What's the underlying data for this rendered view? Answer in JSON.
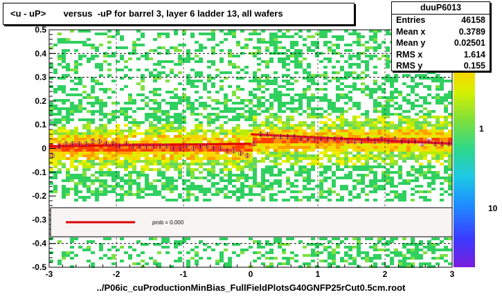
{
  "title": "<u - uP>       versus  -uP for barrel 3, layer 6 ladder 13, all wafers",
  "stats": {
    "name": "duuP6013",
    "rows": [
      {
        "label": "Entries",
        "value": "46158"
      },
      {
        "label": "Mean x",
        "value": "0.3789"
      },
      {
        "label": "Mean y",
        "value": "0.02501"
      },
      {
        "label": "RMS x",
        "value": "1.614"
      },
      {
        "label": "RMS y",
        "value": "0.155"
      }
    ]
  },
  "footer": "../P06ic_cuProductionMinBias_FullFieldPlotsG40GNFP25rCut0.5cm.root",
  "legend": {
    "label": "prob = 0.000",
    "color": "#dd0000"
  },
  "colors": {
    "marker_outline": "#cc3399",
    "marker_fill": "#000000",
    "fit": "#dd0000"
  },
  "chart_data": {
    "type": "heatmap",
    "xlim": [
      -3,
      3
    ],
    "ylim": [
      -0.5,
      0.5
    ],
    "x_ticks": [
      "-3",
      "-2",
      "-1",
      "0",
      "1",
      "2",
      "3"
    ],
    "y_ticks": [
      "-0.5",
      "-0.4",
      "-0.3",
      "-0.2",
      "-0.1",
      "0",
      "0.1",
      "0.2",
      "0.3",
      "0.4",
      "0.5"
    ],
    "colorbar_labels": [
      "1",
      "10"
    ],
    "colorbar_labels_raw": [
      "1",
      "10-1"
    ],
    "profile": {
      "x": [
        -2.95,
        -2.85,
        -2.75,
        -2.65,
        -2.55,
        -2.45,
        -2.35,
        -2.25,
        -2.15,
        -2.05,
        -1.95,
        -1.85,
        -1.75,
        -1.65,
        -1.55,
        -1.45,
        -1.35,
        -1.25,
        -1.15,
        -1.05,
        -0.95,
        -0.85,
        -0.75,
        -0.65,
        -0.55,
        -0.45,
        -0.35,
        -0.25,
        -0.15,
        -0.05,
        0.05,
        0.15,
        0.25,
        0.35,
        0.45,
        0.55,
        0.65,
        0.75,
        0.85,
        0.95,
        1.05,
        1.15,
        1.25,
        1.35,
        1.45,
        1.55,
        1.65,
        1.75,
        1.85,
        1.95,
        2.05,
        2.15,
        2.25,
        2.35,
        2.45,
        2.55,
        2.65,
        2.75,
        2.85,
        2.95
      ],
      "y": [
        -0.03,
        0.01,
        0.02,
        0.02,
        0.02,
        0.02,
        0.03,
        0.03,
        0.02,
        0.02,
        0.01,
        0.02,
        0.01,
        0.01,
        0.01,
        0.01,
        0.01,
        0.01,
        0.0,
        0.0,
        0.01,
        0.0,
        0.01,
        0.01,
        0.0,
        0.0,
        -0.01,
        -0.01,
        -0.02,
        -0.03,
        0.02,
        0.06,
        0.06,
        0.05,
        0.05,
        0.05,
        0.05,
        0.04,
        0.04,
        0.04,
        0.04,
        0.04,
        0.04,
        0.04,
        0.03,
        0.03,
        0.03,
        0.04,
        0.03,
        0.04,
        0.03,
        0.04,
        0.03,
        0.03,
        0.03,
        0.02,
        0.03,
        0.02,
        0.02,
        0.02
      ]
    },
    "fit_segments": [
      {
        "x": [
          -3,
          0
        ],
        "y": [
          0.01,
          0.02
        ]
      },
      {
        "x": [
          0,
          3
        ],
        "y": [
          0.06,
          0.02
        ]
      }
    ],
    "dashed_grid_y": [
      0.4,
      0.3,
      -0.4
    ]
  }
}
